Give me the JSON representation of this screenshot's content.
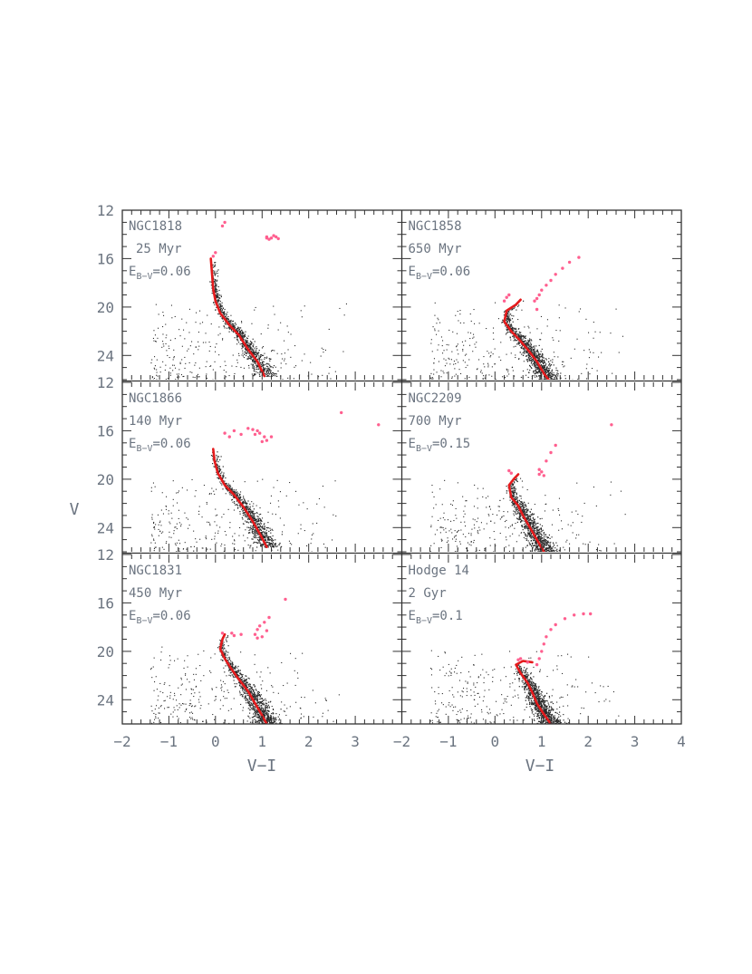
{
  "chart_data": {
    "type": "scatter",
    "xlabel": "V−I",
    "ylabel": "V",
    "xlim": [
      -2,
      4
    ],
    "ylim": [
      26,
      12
    ],
    "yticks": [
      12,
      16,
      20,
      24
    ],
    "xtick_labels_left": [
      "−2",
      "−1",
      "0",
      "1",
      "2",
      "3"
    ],
    "xtick_labels_right": [
      "−2",
      "−1",
      "0",
      "1",
      "2",
      "3",
      "4"
    ],
    "x_minor_step": 0.2,
    "y_minor_step": 1,
    "colors": {
      "stars": "#2a2a2a",
      "isochrone": "#e41a1c",
      "giants": "#ff5f8f",
      "frame": "#333333",
      "text": "#6b7480"
    },
    "panels": [
      {
        "cluster": "NGC1818",
        "age": "25 Myr",
        "ebv_base": "E",
        "ebv_sub": "B−V",
        "ebv_value": "=0.06",
        "isochrone": [
          [
            -0.1,
            16.0
          ],
          [
            -0.05,
            18.5
          ],
          [
            0.0,
            19.5
          ],
          [
            0.1,
            20.5
          ],
          [
            0.3,
            21.5
          ],
          [
            0.5,
            22.3
          ],
          [
            0.7,
            23.5
          ],
          [
            0.9,
            24.5
          ],
          [
            1.05,
            25.7
          ]
        ],
        "giants": [
          [
            0.2,
            13.0
          ],
          [
            0.15,
            13.3
          ],
          [
            -0.05,
            15.8
          ],
          [
            0.0,
            15.5
          ],
          [
            1.1,
            14.2
          ],
          [
            1.2,
            14.3
          ],
          [
            1.3,
            14.2
          ],
          [
            1.15,
            14.4
          ],
          [
            1.25,
            14.1
          ],
          [
            1.35,
            14.35
          ],
          [
            1.1,
            14.3
          ]
        ]
      },
      {
        "cluster": "NGC1858",
        "age": "650 Myr",
        "ebv_base": "E",
        "ebv_sub": "B−V",
        "ebv_value": "=0.06",
        "isochrone": [
          [
            0.55,
            19.4
          ],
          [
            0.45,
            19.8
          ],
          [
            0.25,
            20.3
          ],
          [
            0.2,
            21.2
          ],
          [
            0.35,
            22.0
          ],
          [
            0.5,
            22.6
          ],
          [
            0.7,
            23.5
          ],
          [
            0.9,
            24.5
          ],
          [
            1.05,
            25.5
          ],
          [
            1.15,
            26.0
          ]
        ],
        "giants": [
          [
            0.25,
            19.2
          ],
          [
            0.3,
            19.0
          ],
          [
            0.2,
            19.5
          ],
          [
            0.9,
            19.3
          ],
          [
            0.95,
            19.0
          ],
          [
            1.0,
            18.6
          ],
          [
            1.1,
            18.2
          ],
          [
            1.2,
            17.8
          ],
          [
            1.3,
            17.3
          ],
          [
            1.45,
            16.8
          ],
          [
            1.6,
            16.3
          ],
          [
            1.8,
            15.9
          ],
          [
            0.85,
            19.5
          ],
          [
            0.9,
            20.2
          ]
        ]
      },
      {
        "cluster": "NGC1866",
        "age": "140 Myr",
        "ebv_base": "E",
        "ebv_sub": "B−V",
        "ebv_value": "=0.06",
        "isochrone": [
          [
            -0.05,
            17.5
          ],
          [
            -0.02,
            18.5
          ],
          [
            0.05,
            19.5
          ],
          [
            0.2,
            20.5
          ],
          [
            0.4,
            21.3
          ],
          [
            0.6,
            22.3
          ],
          [
            0.8,
            23.5
          ],
          [
            0.95,
            24.5
          ],
          [
            1.1,
            25.6
          ]
        ],
        "giants": [
          [
            0.2,
            16.2
          ],
          [
            0.4,
            16.0
          ],
          [
            0.7,
            15.8
          ],
          [
            0.8,
            15.9
          ],
          [
            0.95,
            16.2
          ],
          [
            1.05,
            16.5
          ],
          [
            1.1,
            16.8
          ],
          [
            1.0,
            16.9
          ],
          [
            0.85,
            16.3
          ],
          [
            0.9,
            16.0
          ],
          [
            1.2,
            16.5
          ],
          [
            2.7,
            14.5
          ],
          [
            3.5,
            15.5
          ],
          [
            0.3,
            16.5
          ],
          [
            0.55,
            16.3
          ]
        ]
      },
      {
        "cluster": "NGC2209",
        "age": "700 Myr",
        "ebv_base": "E",
        "ebv_sub": "B−V",
        "ebv_value": "=0.15",
        "isochrone": [
          [
            0.5,
            19.6
          ],
          [
            0.4,
            20.0
          ],
          [
            0.3,
            20.5
          ],
          [
            0.35,
            21.5
          ],
          [
            0.5,
            22.2
          ],
          [
            0.6,
            23.0
          ],
          [
            0.75,
            24.0
          ],
          [
            0.9,
            25.0
          ],
          [
            1.05,
            26.0
          ]
        ],
        "giants": [
          [
            0.3,
            19.3
          ],
          [
            0.35,
            19.5
          ],
          [
            0.95,
            19.2
          ],
          [
            0.95,
            19.6
          ],
          [
            1.0,
            19.4
          ],
          [
            1.05,
            19.7
          ],
          [
            1.1,
            18.5
          ],
          [
            1.2,
            17.8
          ],
          [
            1.3,
            17.2
          ],
          [
            2.5,
            15.5
          ]
        ]
      },
      {
        "cluster": "NGC1831",
        "age": "450 Myr",
        "ebv_base": "E",
        "ebv_sub": "B−V",
        "ebv_value": "=0.06",
        "isochrone": [
          [
            0.2,
            18.6
          ],
          [
            0.15,
            19.0
          ],
          [
            0.1,
            19.8
          ],
          [
            0.2,
            20.6
          ],
          [
            0.35,
            21.5
          ],
          [
            0.5,
            22.3
          ],
          [
            0.7,
            23.3
          ],
          [
            0.85,
            24.3
          ],
          [
            1.0,
            25.3
          ],
          [
            1.1,
            26.0
          ]
        ],
        "giants": [
          [
            0.15,
            18.5
          ],
          [
            0.35,
            18.5
          ],
          [
            0.4,
            18.7
          ],
          [
            0.55,
            18.6
          ],
          [
            0.85,
            18.6
          ],
          [
            0.9,
            18.2
          ],
          [
            0.95,
            17.9
          ],
          [
            1.05,
            17.6
          ],
          [
            1.15,
            17.2
          ],
          [
            1.0,
            18.8
          ],
          [
            1.1,
            18.3
          ],
          [
            1.5,
            15.7
          ],
          [
            0.9,
            18.9
          ]
        ]
      },
      {
        "cluster": "Hodge 14",
        "age": "2 Gyr",
        "ebv_base": "E",
        "ebv_sub": "B−V",
        "ebv_value": "=0.1",
        "isochrone": [
          [
            0.8,
            20.9
          ],
          [
            0.6,
            20.8
          ],
          [
            0.45,
            21.1
          ],
          [
            0.55,
            21.8
          ],
          [
            0.7,
            22.6
          ],
          [
            0.8,
            23.4
          ],
          [
            0.9,
            24.3
          ],
          [
            1.05,
            25.2
          ],
          [
            1.2,
            26.0
          ]
        ],
        "giants": [
          [
            0.5,
            20.7
          ],
          [
            0.55,
            20.6
          ],
          [
            0.7,
            20.9
          ],
          [
            0.9,
            21.1
          ],
          [
            0.95,
            20.6
          ],
          [
            1.0,
            20.0
          ],
          [
            1.05,
            19.4
          ],
          [
            1.1,
            18.8
          ],
          [
            1.2,
            18.2
          ],
          [
            1.3,
            17.8
          ],
          [
            1.5,
            17.3
          ],
          [
            1.7,
            17.0
          ],
          [
            1.9,
            16.9
          ],
          [
            2.05,
            16.9
          ]
        ]
      }
    ]
  }
}
